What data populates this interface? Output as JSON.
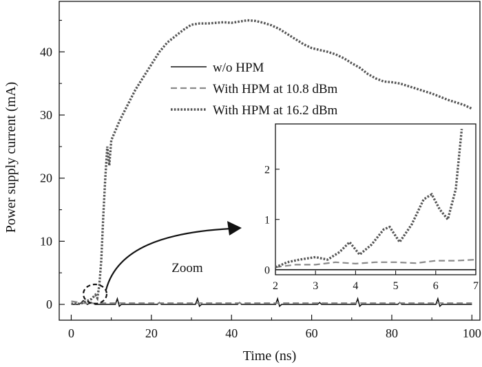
{
  "chart_data": [
    {
      "type": "line",
      "xlabel": "Time (ns)",
      "ylabel": "Power supply current (mA)",
      "xlim": [
        -3,
        102
      ],
      "ylim": [
        -2.5,
        48
      ],
      "xticks": [
        0,
        20,
        40,
        60,
        80,
        100
      ],
      "yticks": [
        0,
        10,
        20,
        30,
        40
      ],
      "legend_position": "upper-right",
      "annotation": "Zoom",
      "colors": {
        "axis": "#111111",
        "solid": "#111111",
        "dashed": "#888888",
        "dotted": "#555555"
      },
      "series": [
        {
          "name": "w/o HPM",
          "style": "solid",
          "x": [
            0,
            2,
            3,
            4,
            5,
            6,
            7,
            8,
            9,
            10,
            11,
            11.5,
            12,
            12.5,
            13,
            20,
            21.5,
            22,
            22.5,
            24,
            31,
            31.5,
            32,
            32.5,
            33,
            40,
            41.5,
            42,
            42.5,
            44,
            51,
            51.5,
            52,
            52.5,
            53,
            60,
            61.5,
            62,
            62.5,
            64,
            71,
            71.5,
            72,
            72.5,
            73,
            80,
            81.5,
            82,
            82.5,
            84,
            91,
            91.5,
            92,
            92.5,
            93,
            100
          ],
          "y": [
            0,
            0,
            0.6,
            0,
            0.3,
            0,
            0,
            0,
            0,
            0,
            0,
            0.9,
            -0.3,
            0,
            0,
            0,
            0,
            0.3,
            0,
            0,
            0,
            0.9,
            -0.3,
            0,
            0,
            0,
            0,
            0.3,
            0,
            0,
            0,
            0.9,
            -0.3,
            0,
            0,
            0,
            0,
            0.3,
            0,
            0,
            0,
            0.9,
            -0.3,
            0,
            0,
            0,
            0,
            0.3,
            0,
            0,
            0,
            0.9,
            -0.3,
            0,
            0,
            0
          ]
        },
        {
          "name": "With HPM at 10.8 dBm",
          "style": "dashed",
          "x": [
            0,
            2,
            3,
            4,
            5,
            6,
            7,
            8,
            10,
            20,
            30,
            40,
            50,
            60,
            70,
            80,
            90,
            100
          ],
          "y": [
            0.5,
            0.3,
            0.2,
            0.15,
            0.2,
            0.15,
            0.2,
            0.2,
            0.2,
            0.2,
            0.2,
            0.2,
            0.2,
            0.2,
            0.2,
            0.2,
            0.2,
            0.2
          ]
        },
        {
          "name": "With HPM at 16.2 dBm",
          "style": "dotted",
          "x": [
            0,
            2,
            3,
            4,
            5,
            6,
            6.5,
            7,
            7.5,
            8,
            8.5,
            9,
            9.5,
            10,
            11,
            12,
            14,
            16,
            18,
            20,
            22,
            24,
            26,
            28,
            30,
            32,
            34,
            36,
            38,
            40,
            42,
            44,
            46,
            48,
            50,
            52,
            54,
            56,
            58,
            60,
            62,
            64,
            66,
            68,
            70,
            72,
            74,
            76,
            78,
            80,
            82,
            84,
            86,
            88,
            90,
            92,
            94,
            96,
            98,
            100
          ],
          "y": [
            0.1,
            0.1,
            0.25,
            0.55,
            0.85,
            1.5,
            1.0,
            3,
            7,
            14,
            20,
            25,
            22,
            26,
            27.5,
            29,
            31.5,
            34,
            36,
            38,
            40,
            41.5,
            42.5,
            43.5,
            44.3,
            44.5,
            44.5,
            44.6,
            44.7,
            44.6,
            44.8,
            45,
            44.9,
            44.6,
            44.2,
            43.6,
            42.8,
            42,
            41.2,
            40.6,
            40.3,
            40,
            39.6,
            39,
            38.2,
            37.5,
            36.5,
            35.8,
            35.3,
            35.2,
            35,
            34.6,
            34.2,
            33.8,
            33.4,
            32.9,
            32.4,
            32,
            31.6,
            31
          ]
        }
      ]
    },
    {
      "type": "line",
      "role": "inset",
      "xlim": [
        2,
        7
      ],
      "ylim": [
        -0.1,
        2.9
      ],
      "xticks": [
        2,
        3,
        4,
        5,
        6,
        7
      ],
      "yticks": [
        0,
        1,
        2
      ],
      "series": [
        {
          "name": "w/o HPM",
          "style": "solid",
          "x": [
            2,
            7
          ],
          "y": [
            0,
            0
          ]
        },
        {
          "name": "With HPM at 10.8 dBm",
          "style": "dashed",
          "x": [
            2,
            2.5,
            3,
            3.5,
            4,
            4.5,
            5,
            5.5,
            6,
            6.5,
            7
          ],
          "y": [
            0.05,
            0.1,
            0.1,
            0.15,
            0.12,
            0.15,
            0.15,
            0.13,
            0.18,
            0.18,
            0.2
          ]
        },
        {
          "name": "With HPM at 16.2 dBm",
          "style": "dotted",
          "x": [
            2,
            2.3,
            2.6,
            3,
            3.3,
            3.6,
            3.85,
            4.1,
            4.4,
            4.7,
            4.85,
            5.1,
            5.4,
            5.7,
            5.9,
            6.1,
            6.3,
            6.5,
            6.65
          ],
          "y": [
            0.05,
            0.15,
            0.2,
            0.25,
            0.2,
            0.35,
            0.55,
            0.3,
            0.5,
            0.8,
            0.85,
            0.55,
            0.9,
            1.4,
            1.5,
            1.2,
            1.0,
            1.6,
            2.8
          ]
        }
      ]
    }
  ]
}
